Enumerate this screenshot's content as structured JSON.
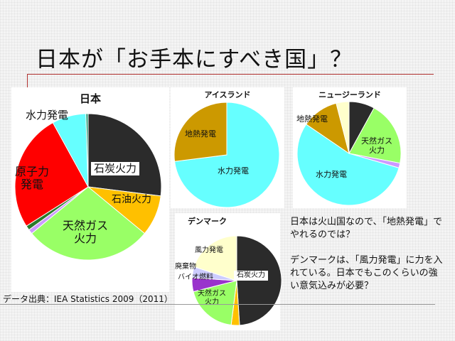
{
  "slide": {
    "title": "日本が「お手本にすべき国」？",
    "note1": "日本は火山国なので、「地熱発電」でやれるのでは？",
    "note2": "デンマークは、「風力発電」に力を入れている。日本でもこのくらいの強い意気込みが必要？",
    "source": "データ出典：IEA Statistics 2009（2011）"
  },
  "chart_data": [
    {
      "type": "pie",
      "title": "日本",
      "slices": [
        {
          "label": "石炭火力",
          "value": 27,
          "color": "#2b2b2b"
        },
        {
          "label": "石油火力",
          "value": 9,
          "color": "#ffc000"
        },
        {
          "label": "天然ガス\n火力",
          "value": 28,
          "color": "#99ff66"
        },
        {
          "label": "",
          "value": 1,
          "color": "#cc99ff"
        },
        {
          "label": "",
          "value": 1,
          "color": "#2a7a2a"
        },
        {
          "label": "原子力\n発電",
          "value": 26,
          "color": "#ff0000"
        },
        {
          "label": "水力発電",
          "value": 7.5,
          "color": "#66ffff"
        },
        {
          "label": "",
          "value": 0.5,
          "color": "#2f9e7a"
        }
      ]
    },
    {
      "type": "pie",
      "title": "アイスランド",
      "slices": [
        {
          "label": "水力発電",
          "value": 73,
          "color": "#66ffff"
        },
        {
          "label": "地熱発電",
          "value": 27,
          "color": "#cc9900"
        }
      ]
    },
    {
      "type": "pie",
      "title": "ニュージーランド",
      "slices": [
        {
          "label": "",
          "value": 8,
          "color": "#2b2b2b"
        },
        {
          "label": "天然ガス\n火力",
          "value": 20,
          "color": "#99ff66"
        },
        {
          "label": "",
          "value": 1.5,
          "color": "#cc99ff"
        },
        {
          "label": "水力発電",
          "value": 55,
          "color": "#66ffff"
        },
        {
          "label": "地熱発電",
          "value": 11.5,
          "color": "#cc9900"
        },
        {
          "label": "",
          "value": 4,
          "color": "#ffffcc"
        }
      ]
    },
    {
      "type": "pie",
      "title": "デンマーク",
      "slices": [
        {
          "label": "石炭火力",
          "value": 49,
          "color": "#2b2b2b"
        },
        {
          "label": "",
          "value": 3,
          "color": "#ffc000"
        },
        {
          "label": "天然ガス\n火力",
          "value": 19,
          "color": "#99ff66"
        },
        {
          "label": "バイオ燃料",
          "value": 5,
          "color": "#9933cc"
        },
        {
          "label": "廃棄物",
          "value": 4,
          "color": "#ccccff"
        },
        {
          "label": "風力発電",
          "value": 20,
          "color": "#ffffcc"
        }
      ]
    }
  ]
}
